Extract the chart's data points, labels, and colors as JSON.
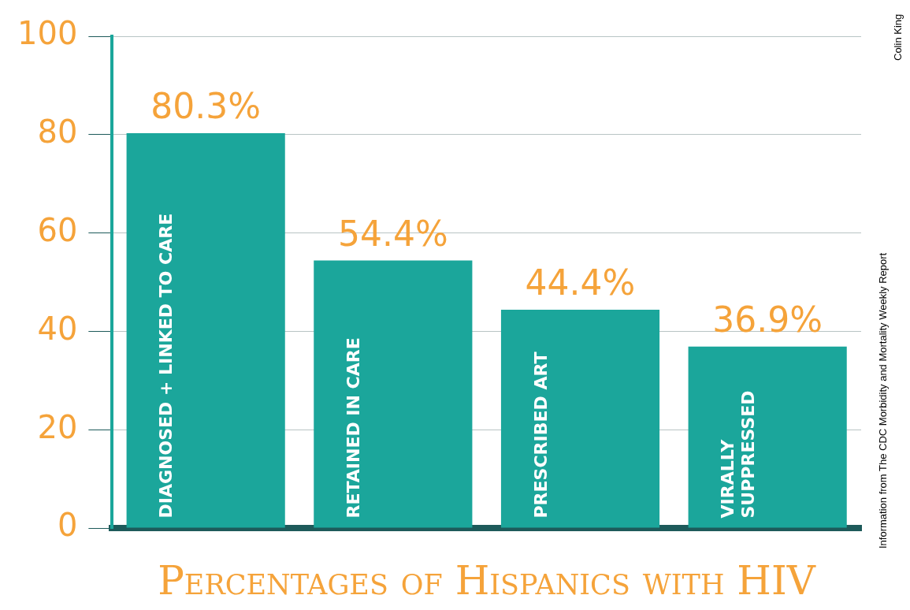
{
  "chart_data": {
    "type": "bar",
    "title": "Percentages of Hispanics with HIV",
    "categories": [
      "DIAGNOSED + LINKED TO CARE",
      "RETAINED IN CARE",
      "PRESCRIBED ART",
      "VIRALLY SUPPRESSED"
    ],
    "values": [
      80.3,
      54.4,
      44.4,
      36.9
    ],
    "value_labels": [
      "80.3%",
      "54.4%",
      "44.4%",
      "36.9%"
    ],
    "color": "#1ba69b",
    "ylim": [
      0,
      100
    ],
    "yticks": [
      0,
      20,
      40,
      60,
      80,
      100
    ],
    "grid": "y",
    "annotations": [
      "Colin King",
      "Information from The CDC Morbidity and Mortality Weekly Report"
    ]
  }
}
